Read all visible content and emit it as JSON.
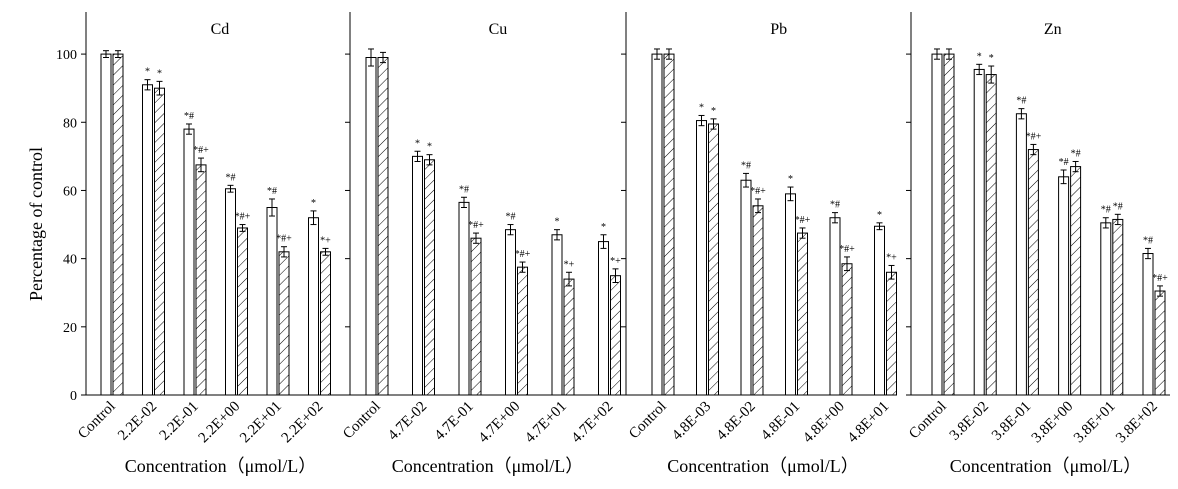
{
  "colors": {
    "ink": "#000000",
    "background": "#ffffff",
    "bar_fill": "#ffffff"
  },
  "ylabel": "Percentage of control",
  "yticks": [
    "0",
    "20",
    "40",
    "60",
    "80",
    "100"
  ],
  "chart_data": [
    {
      "type": "bar",
      "title": "Cd",
      "xlabel": "Concentration（μmol/L）",
      "ylabel": "Percentage of control",
      "ylim": [
        0,
        110
      ],
      "categories": [
        "Control",
        "2.2E-02",
        "2.2E-01",
        "2.2E+00",
        "2.2E+01",
        "2.2E+02"
      ],
      "series": [
        {
          "name": "open",
          "pattern": "none",
          "values": [
            100,
            91,
            78,
            60.5,
            55,
            52
          ],
          "errors": [
            1,
            1.5,
            1.5,
            1,
            2.5,
            2
          ],
          "labels": [
            "",
            "*",
            "*#",
            "*#",
            "*#",
            "*"
          ]
        },
        {
          "name": "hatched",
          "pattern": "diagonal",
          "values": [
            100,
            90,
            67.5,
            49,
            42,
            42
          ],
          "errors": [
            1,
            2,
            2,
            1,
            1.5,
            1
          ],
          "labels": [
            "",
            "*",
            "*#+",
            "*#+",
            "*#+",
            "*+"
          ]
        }
      ]
    },
    {
      "type": "bar",
      "title": "Cu",
      "xlabel": "Concentration（μmol/L）",
      "ylim": [
        0,
        110
      ],
      "categories": [
        "Control",
        "4.7E-02",
        "4.7E-01",
        "4.7E+00",
        "4.7E+01",
        "4.7E+02"
      ],
      "series": [
        {
          "name": "open",
          "pattern": "none",
          "values": [
            99,
            70,
            56.5,
            48.5,
            47,
            45
          ],
          "errors": [
            2.5,
            1.5,
            1.5,
            1.5,
            1.5,
            2
          ],
          "labels": [
            "",
            "*",
            "*#",
            "*#",
            "*",
            "*"
          ]
        },
        {
          "name": "hatched",
          "pattern": "diagonal",
          "values": [
            99,
            69,
            46,
            37.5,
            34,
            35
          ],
          "errors": [
            1.5,
            1.5,
            1.5,
            1.5,
            2,
            2
          ],
          "labels": [
            "",
            "*",
            "*#+",
            "*#+",
            "*+",
            "*+"
          ]
        }
      ]
    },
    {
      "type": "bar",
      "title": "Pb",
      "xlabel": "Concentration（μmol/L）",
      "ylim": [
        0,
        110
      ],
      "categories": [
        "Control",
        "4.8E-03",
        "4.8E-02",
        "4.8E-01",
        "4.8E+00",
        "4.8E+01"
      ],
      "series": [
        {
          "name": "open",
          "pattern": "none",
          "values": [
            100,
            80.5,
            63,
            59,
            52,
            49.5
          ],
          "errors": [
            1.5,
            1.5,
            2,
            2,
            1.5,
            1
          ],
          "labels": [
            "",
            "*",
            "*#",
            "*",
            "*#",
            "*"
          ]
        },
        {
          "name": "hatched",
          "pattern": "diagonal",
          "values": [
            100,
            79.5,
            55.5,
            47.5,
            38.5,
            36
          ],
          "errors": [
            1.5,
            1.5,
            2,
            1.5,
            2,
            2
          ],
          "labels": [
            "",
            "*",
            "*#+",
            "*#+",
            "*#+",
            "*+"
          ]
        }
      ]
    },
    {
      "type": "bar",
      "title": "Zn",
      "xlabel": "Concentration（μmol/L）",
      "ylim": [
        0,
        110
      ],
      "categories": [
        "Control",
        "3.8E-02",
        "3.8E-01",
        "3.8E+00",
        "3.8E+01",
        "3.8E+02"
      ],
      "series": [
        {
          "name": "open",
          "pattern": "none",
          "values": [
            100,
            95.5,
            82.5,
            64,
            50.5,
            41.5
          ],
          "errors": [
            1.5,
            1.5,
            1.5,
            2,
            1.5,
            1.5
          ],
          "labels": [
            "",
            "*",
            "*#",
            "*#",
            "*#",
            "*#"
          ]
        },
        {
          "name": "hatched",
          "pattern": "diagonal",
          "values": [
            100,
            94,
            72,
            67,
            51.5,
            30.5
          ],
          "errors": [
            1.5,
            2.5,
            1.5,
            1.5,
            1.5,
            1.5
          ],
          "labels": [
            "",
            "*",
            "*#+",
            "*#",
            "*#",
            "*#+"
          ]
        }
      ]
    }
  ]
}
